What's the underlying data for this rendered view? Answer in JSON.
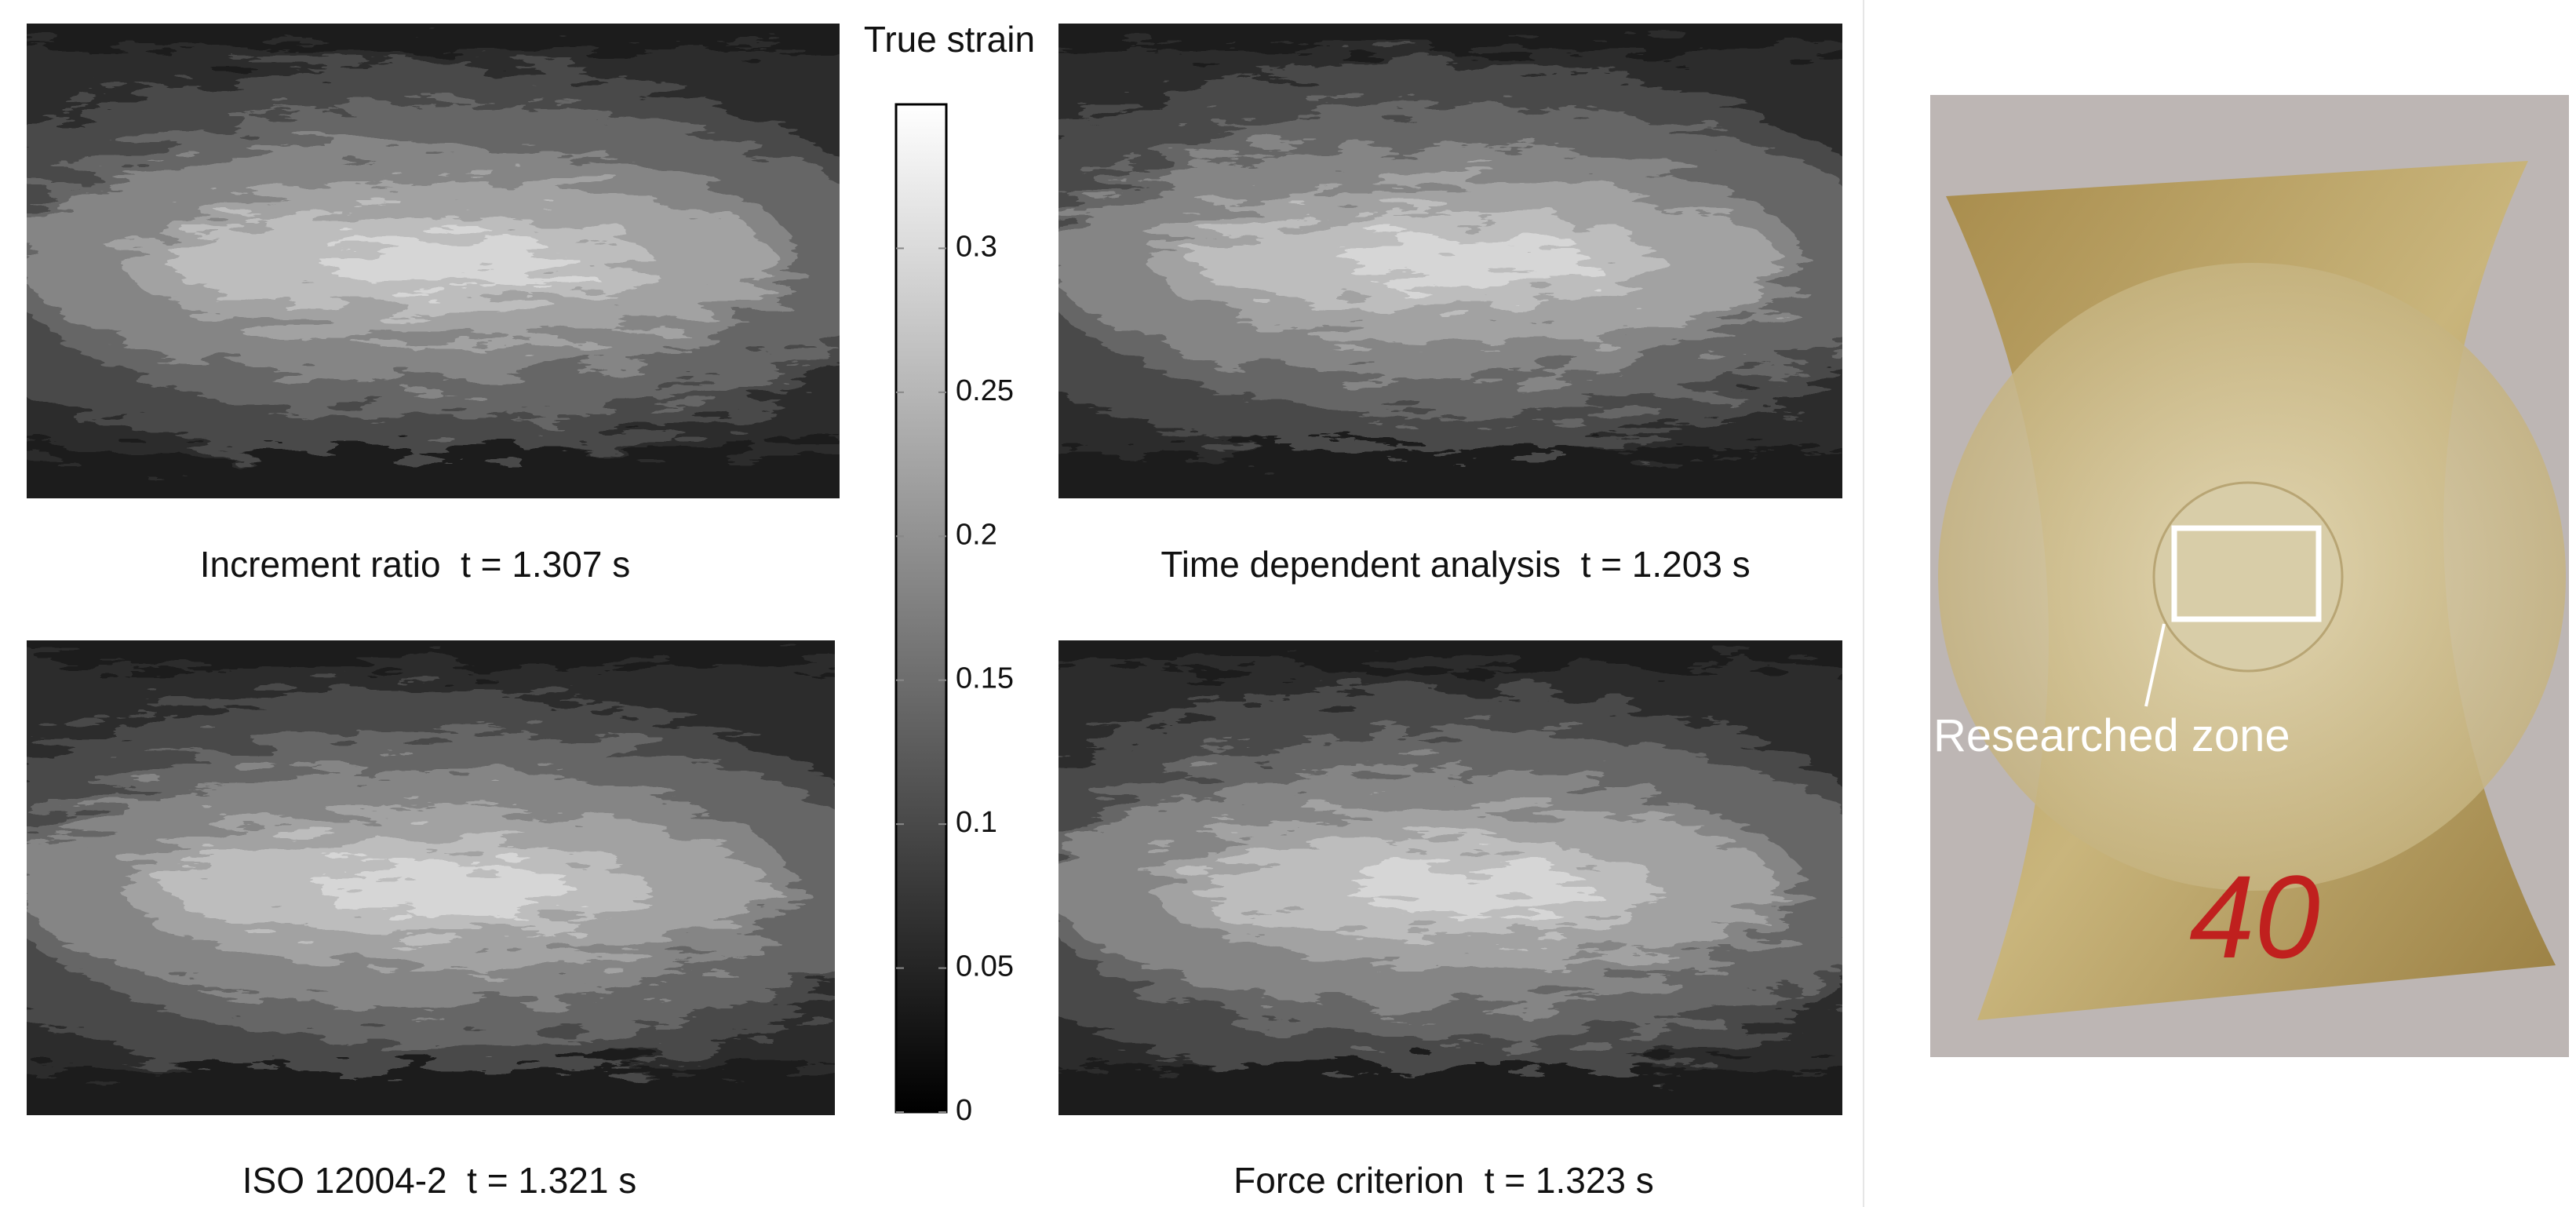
{
  "panels": [
    {
      "caption": "Increment ratio  t = 1.307 s"
    },
    {
      "caption": "Time dependent analysis  t = 1.203 s"
    },
    {
      "caption": "ISO 12004-2  t = 1.321 s"
    },
    {
      "caption": "Force criterion  t = 1.323 s"
    }
  ],
  "colorbar": {
    "title": "True strain",
    "lim": [
      0,
      0.35
    ],
    "ticks": [
      0,
      0.05,
      0.1,
      0.15,
      0.2,
      0.25,
      0.3
    ]
  },
  "photo": {
    "label": "Researched zone",
    "specimen_number": "40"
  }
}
